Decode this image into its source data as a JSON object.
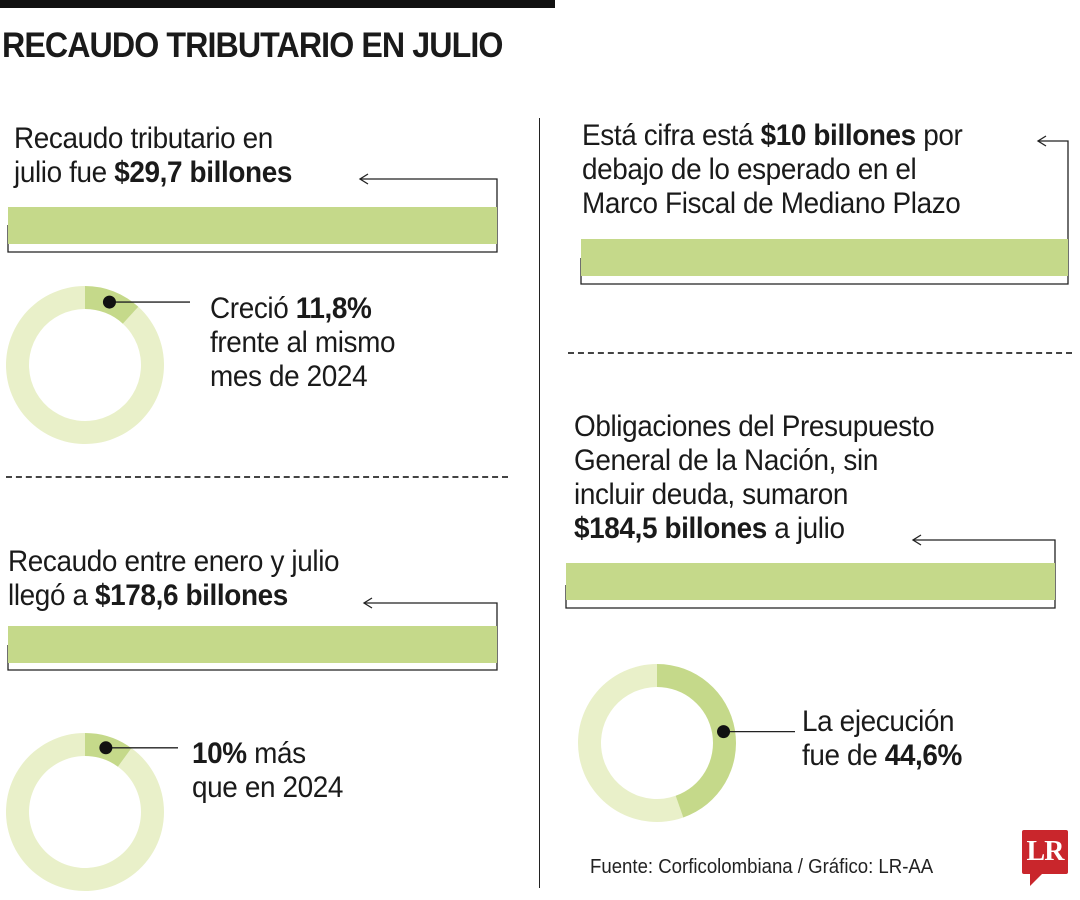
{
  "title": "RECAUDO TRIBUTARIO EN JULIO",
  "blocks": {
    "b1": {
      "line1": "Recaudo tributario en",
      "pre": "julio fue ",
      "bold": "$29,7 billones"
    },
    "b2": {
      "pre": "Creció ",
      "bold": "11,8%",
      "line2": "frente al mismo",
      "line3": "mes de 2024"
    },
    "b3": {
      "line1": "Recaudo entre enero y julio",
      "pre": "llegó a ",
      "bold": "$178,6 billones"
    },
    "b4": {
      "bold": "10%",
      "post": " más",
      "line2": "que en 2024"
    },
    "b5": {
      "pre": "Está cifra está ",
      "bold": "$10 billones",
      "post": " por",
      "line2": "debajo de lo esperado en el",
      "line3": "Marco Fiscal de Mediano Plazo"
    },
    "b6": {
      "line1": "Obligaciones del Presupuesto",
      "line2": "General de la Nación, sin",
      "line3": "incluir deuda, sumaron",
      "bold": "$184,5 billones",
      "post": " a julio"
    },
    "b7": {
      "line1": "La ejecución",
      "pre": "fue de ",
      "bold": "44,6%"
    }
  },
  "source": "Fuente: Corficolombiana / Gráfico: LR-AA",
  "logo": "LR",
  "colors": {
    "highlight": "#c5d98a",
    "track": "#e9f0c9",
    "logo": "#c9262c"
  },
  "chart_data": [
    {
      "type": "pie",
      "variant": "donut",
      "values": [
        11.8,
        88.2
      ],
      "label": "Creció 11,8%"
    },
    {
      "type": "pie",
      "variant": "donut",
      "values": [
        10,
        90
      ],
      "label": "10% más"
    },
    {
      "type": "pie",
      "variant": "donut",
      "values": [
        44.6,
        55.4
      ],
      "label": "La ejecución fue de 44,6%"
    }
  ]
}
